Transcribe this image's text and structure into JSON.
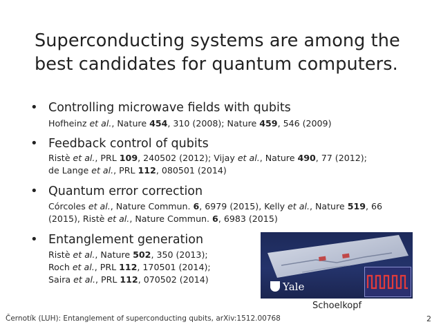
{
  "slide": {
    "title_line1": "Superconducting systems are among the",
    "title_line2": "best candidates for quantum computers."
  },
  "bullets": [
    {
      "heading": "Controlling microwave fields with qubits",
      "refs": [
        [
          {
            "t": "Hofheinz "
          },
          {
            "t": "et al.",
            "s": "i"
          },
          {
            "t": ", Nature "
          },
          {
            "t": "454",
            "s": "b"
          },
          {
            "t": ", 310 (2008); Nature "
          },
          {
            "t": "459",
            "s": "b"
          },
          {
            "t": ", 546 (2009)"
          }
        ]
      ]
    },
    {
      "heading": "Feedback control of qubits",
      "refs": [
        [
          {
            "t": "Ristè "
          },
          {
            "t": "et al.",
            "s": "i"
          },
          {
            "t": ", PRL "
          },
          {
            "t": "109",
            "s": "b"
          },
          {
            "t": ", 240502 (2012); Vijay "
          },
          {
            "t": "et al.",
            "s": "i"
          },
          {
            "t": ", Nature "
          },
          {
            "t": "490",
            "s": "b"
          },
          {
            "t": ", 77 (2012);"
          }
        ],
        [
          {
            "t": "de Lange "
          },
          {
            "t": "et al.",
            "s": "i"
          },
          {
            "t": ", PRL "
          },
          {
            "t": "112",
            "s": "b"
          },
          {
            "t": ", 080501 (2014)"
          }
        ]
      ]
    },
    {
      "heading": "Quantum error correction",
      "refs": [
        [
          {
            "t": "Córcoles "
          },
          {
            "t": "et al.",
            "s": "i"
          },
          {
            "t": ", Nature Commun. "
          },
          {
            "t": "6",
            "s": "b"
          },
          {
            "t": ", 6979 (2015), Kelly "
          },
          {
            "t": "et al.",
            "s": "i"
          },
          {
            "t": ", Nature "
          },
          {
            "t": "519",
            "s": "b"
          },
          {
            "t": ", 66"
          }
        ],
        [
          {
            "t": "(2015), Ristè "
          },
          {
            "t": "et al.",
            "s": "i"
          },
          {
            "t": ", Nature Commun. "
          },
          {
            "t": "6",
            "s": "b"
          },
          {
            "t": ", 6983 (2015)"
          }
        ]
      ]
    },
    {
      "heading": "Entanglement generation",
      "refs": [
        [
          {
            "t": "Ristè "
          },
          {
            "t": "et al.",
            "s": "i"
          },
          {
            "t": ", Nature "
          },
          {
            "t": "502",
            "s": "b"
          },
          {
            "t": ", 350 (2013);"
          }
        ],
        [
          {
            "t": "Roch "
          },
          {
            "t": "et al.",
            "s": "i"
          },
          {
            "t": ", PRL "
          },
          {
            "t": "112",
            "s": "b"
          },
          {
            "t": ", 170501 (2014);"
          }
        ],
        [
          {
            "t": "Saira "
          },
          {
            "t": "et al.",
            "s": "i"
          },
          {
            "t": ", PRL "
          },
          {
            "t": "112",
            "s": "b"
          },
          {
            "t": ", 070502 (2014)"
          }
        ]
      ]
    }
  ],
  "bullet_symbol": "•",
  "photo": {
    "logo_text": "Yale",
    "caption": "Schoelkopf"
  },
  "footer": {
    "text": "Černotík (LUH): Entanglement of superconducting qubits, arXiv:1512.00768",
    "page_number": "2"
  },
  "colors": {
    "photo_bg": "#1d2a5a",
    "chip": "#cfd6e6",
    "inset_trace": "#e23b3b"
  },
  "icons": [
    "yale-shield-icon"
  ]
}
